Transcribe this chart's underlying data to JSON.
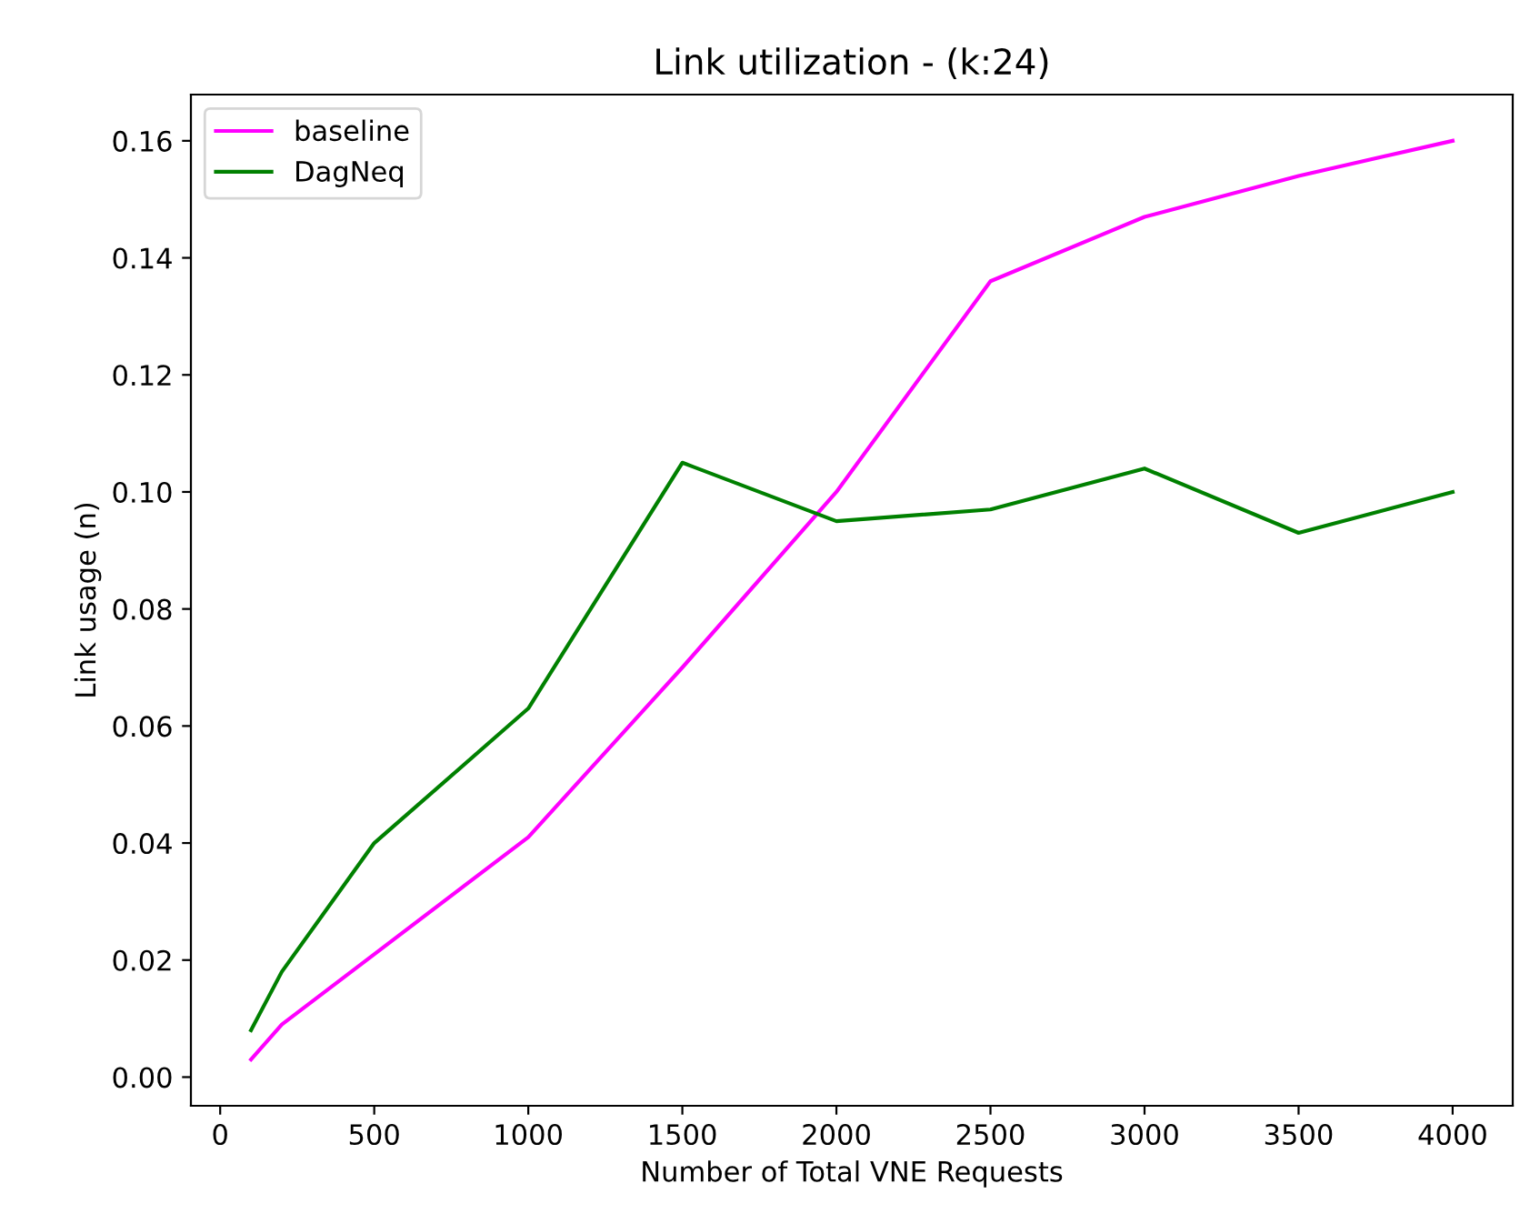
{
  "chart_data": {
    "type": "line",
    "title": "Link utilization - (k:24)",
    "xlabel": "Number of Total VNE Requests",
    "ylabel": "Link usage (n)",
    "x": [
      100,
      200,
      500,
      1000,
      1500,
      2000,
      2500,
      3000,
      3500,
      4000
    ],
    "series": [
      {
        "name": "baseline",
        "color": "#ff00ff",
        "values": [
          0.003,
          0.009,
          0.021,
          0.041,
          0.07,
          0.1,
          0.136,
          0.147,
          0.154,
          0.16
        ]
      },
      {
        "name": "DagNeq",
        "color": "#008000",
        "values": [
          0.008,
          0.018,
          0.04,
          0.063,
          0.105,
          0.095,
          0.097,
          0.104,
          0.093,
          0.1
        ]
      }
    ],
    "xlim": [
      -95,
      4195
    ],
    "ylim": [
      -0.0049,
      0.1679
    ],
    "xticks": [
      0,
      500,
      1000,
      1500,
      2000,
      2500,
      3000,
      3500,
      4000
    ],
    "yticks": [
      {
        "value": 0,
        "label": "0.00"
      },
      {
        "value": 0.02,
        "label": "0.02"
      },
      {
        "value": 0.04,
        "label": "0.04"
      },
      {
        "value": 0.06,
        "label": "0.06"
      },
      {
        "value": 0.08,
        "label": "0.08"
      },
      {
        "value": 0.1,
        "label": "0.10"
      },
      {
        "value": 0.12,
        "label": "0.12"
      },
      {
        "value": 0.14,
        "label": "0.14"
      },
      {
        "value": 0.16,
        "label": "0.16"
      }
    ],
    "legend": "top left",
    "grid": false,
    "marker": "none",
    "line_style": "solid"
  }
}
